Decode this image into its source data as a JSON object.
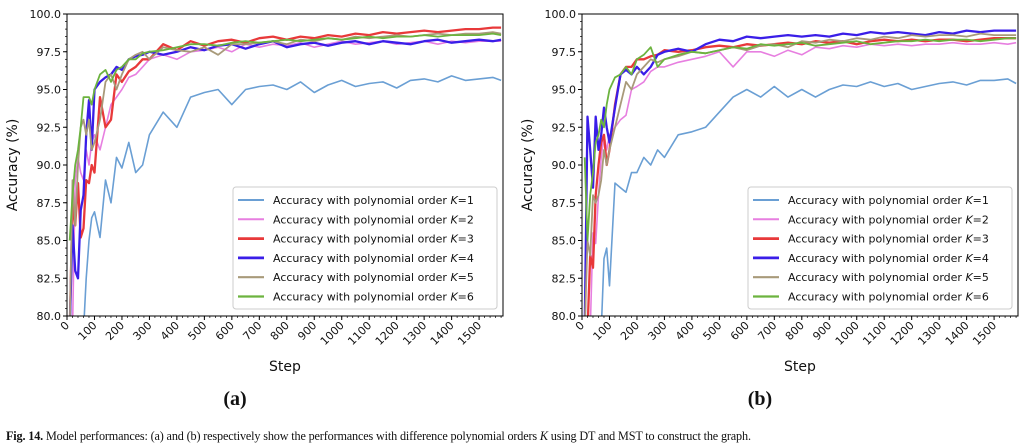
{
  "caption": {
    "label": "Fig. 14.",
    "text_before": "Model performances: (a) and (b) respectively show the performances with difference polynomial orders ",
    "italic": "K",
    "text_after": " using DT and MST to construct the graph."
  },
  "chart_data": [
    {
      "type": "line",
      "panel_label": "(a)",
      "xlabel": "Step",
      "ylabel": "Accuracy (%)",
      "xlim": [
        0,
        1587
      ],
      "ylim": [
        80.0,
        100.0
      ],
      "xticks": [
        0,
        100,
        200,
        300,
        400,
        500,
        600,
        700,
        800,
        900,
        1000,
        1100,
        1200,
        1300,
        1400,
        1500
      ],
      "yticks": [
        "80.0",
        "82.5",
        "85.0",
        "87.5",
        "90.0",
        "92.5",
        "95.0",
        "97.5",
        "100.0"
      ],
      "grid": false,
      "legend_position": "lower-right",
      "x": [
        10,
        20,
        30,
        40,
        50,
        60,
        70,
        80,
        90,
        100,
        120,
        140,
        160,
        180,
        200,
        225,
        250,
        275,
        300,
        350,
        400,
        450,
        500,
        550,
        600,
        650,
        700,
        750,
        800,
        850,
        900,
        950,
        1000,
        1050,
        1100,
        1150,
        1200,
        1250,
        1300,
        1350,
        1400,
        1450,
        1500,
        1550,
        1580
      ],
      "series": [
        {
          "name": "Accuracy with polynomial order K=1",
          "color": "#6a9fd4",
          "values": [
            79,
            79,
            79,
            79,
            79,
            79,
            82.5,
            85,
            86.5,
            86.9,
            85.2,
            89,
            87.5,
            90.5,
            89.8,
            91.5,
            89.5,
            90,
            92,
            93.5,
            92.5,
            94.5,
            94.8,
            95,
            94,
            95,
            95.2,
            95.3,
            95,
            95.5,
            94.8,
            95.3,
            95.6,
            95.2,
            95.4,
            95.5,
            95.1,
            95.6,
            95.7,
            95.5,
            95.9,
            95.6,
            95.7,
            95.8,
            95.6
          ]
        },
        {
          "name": "Accuracy with polynomial order K=2",
          "color": "#e77fe0",
          "values": [
            79,
            79,
            89,
            90.5,
            89.5,
            89,
            91,
            90,
            91.5,
            92,
            91,
            92.5,
            94,
            94.5,
            95,
            95.8,
            96,
            96.5,
            97,
            97.3,
            97,
            97.5,
            97.6,
            97.8,
            97.5,
            98,
            97.8,
            98,
            97.9,
            98.1,
            97.8,
            98,
            98.2,
            98,
            98.1,
            98.2,
            98,
            98.1,
            98.2,
            98,
            98.2,
            98.1,
            98.2,
            98.2,
            98.2
          ]
        },
        {
          "name": "Accuracy with polynomial order K=3",
          "color": "#e8393a",
          "values": [
            79,
            87.5,
            86,
            88.8,
            85.2,
            85.8,
            89,
            88.8,
            90,
            89.5,
            94.5,
            92.5,
            93,
            96,
            95.5,
            96.2,
            96.5,
            97,
            97,
            98,
            97.6,
            98.2,
            97.9,
            98.2,
            98.3,
            98.1,
            98.4,
            98.5,
            98.3,
            98.5,
            98.4,
            98.6,
            98.5,
            98.7,
            98.6,
            98.8,
            98.7,
            98.8,
            98.9,
            98.8,
            98.9,
            99,
            99,
            99.1,
            99.1
          ]
        },
        {
          "name": "Accuracy with polynomial order K=4",
          "color": "#3a1ee8",
          "values": [
            79,
            86,
            83,
            82.5,
            87,
            88,
            92,
            94.3,
            91,
            95,
            95.5,
            95.8,
            96,
            96.5,
            96.3,
            97,
            97.2,
            97.3,
            97.5,
            97.3,
            97.5,
            97.8,
            97.6,
            97.9,
            98,
            97.7,
            98,
            98.2,
            97.8,
            98,
            98.1,
            97.9,
            98.1,
            98.2,
            98,
            98.2,
            98.1,
            98,
            98.2,
            98.3,
            98.1,
            98.2,
            98.3,
            98.2,
            98.3
          ]
        },
        {
          "name": "Accuracy with polynomial order K=5",
          "color": "#a89a7a",
          "values": [
            79,
            89,
            86,
            90,
            92.5,
            93,
            92,
            93,
            91,
            91.5,
            93,
            95.5,
            96,
            95,
            96,
            97,
            97.3,
            97.5,
            97,
            97.8,
            97.6,
            97.5,
            97.8,
            97.3,
            98,
            98,
            98.1,
            98.2,
            98,
            98.3,
            98.2,
            98.4,
            98.3,
            98.5,
            98.4,
            98.5,
            98.6,
            98.5,
            98.6,
            98.7,
            98.6,
            98.7,
            98.7,
            98.8,
            98.7
          ]
        },
        {
          "name": "Accuracy with polynomial order K=6",
          "color": "#6cb33f",
          "values": [
            85,
            88,
            90,
            91,
            92.5,
            94.5,
            94.5,
            94.5,
            94,
            95,
            96,
            96.3,
            95.5,
            96.3,
            96.5,
            97,
            97,
            97.4,
            97.5,
            97.6,
            97.8,
            98,
            98,
            97.9,
            98.1,
            98.2,
            98.1,
            98.2,
            98.3,
            98.2,
            98.3,
            98.4,
            98.3,
            98.4,
            98.5,
            98.4,
            98.5,
            98.5,
            98.6,
            98.5,
            98.6,
            98.6,
            98.6,
            98.7,
            98.6
          ]
        }
      ]
    },
    {
      "type": "line",
      "panel_label": "(b)",
      "xlabel": "Step",
      "ylabel": "Accuracy (%)",
      "xlim": [
        0,
        1587
      ],
      "ylim": [
        80.0,
        100.0
      ],
      "xticks": [
        0,
        100,
        200,
        300,
        400,
        500,
        600,
        700,
        800,
        900,
        1000,
        1100,
        1200,
        1300,
        1400,
        1500
      ],
      "yticks": [
        "80.0",
        "82.5",
        "85.0",
        "87.5",
        "90.0",
        "92.5",
        "95.0",
        "97.5",
        "100.0"
      ],
      "grid": false,
      "legend_position": "lower-right",
      "x": [
        10,
        20,
        30,
        40,
        50,
        60,
        70,
        80,
        90,
        100,
        120,
        140,
        160,
        180,
        200,
        225,
        250,
        275,
        300,
        350,
        400,
        450,
        500,
        550,
        600,
        650,
        700,
        750,
        800,
        850,
        900,
        950,
        1000,
        1050,
        1100,
        1150,
        1200,
        1250,
        1300,
        1350,
        1400,
        1450,
        1500,
        1550,
        1580
      ],
      "series": [
        {
          "name": "Accuracy with polynomial order K=1",
          "color": "#6a9fd4",
          "values": [
            79,
            79,
            79,
            79,
            79,
            79,
            79,
            83.8,
            84.5,
            82,
            88.8,
            88.5,
            88.2,
            89.5,
            89.5,
            90.5,
            90,
            91,
            90.5,
            92,
            92.2,
            92.5,
            93.5,
            94.5,
            95,
            94.5,
            95.2,
            94.5,
            95,
            94.5,
            95,
            95.3,
            95.2,
            95.5,
            95.2,
            95.4,
            95,
            95.2,
            95.4,
            95.5,
            95.3,
            95.6,
            95.6,
            95.7,
            95.4
          ]
        },
        {
          "name": "Accuracy with polynomial order K=2",
          "color": "#e77fe0",
          "values": [
            79,
            79,
            79,
            85.5,
            84.8,
            88,
            90.5,
            92,
            91,
            92,
            92.5,
            93,
            93.3,
            95,
            95.2,
            95.5,
            96.2,
            96.5,
            96.5,
            96.8,
            97,
            97.2,
            97.5,
            96.5,
            97.5,
            97.5,
            97.2,
            97.6,
            97.3,
            97.8,
            97.7,
            97.9,
            97.8,
            98,
            97.9,
            98,
            97.9,
            98,
            98,
            98.1,
            98,
            98,
            98.1,
            98,
            98.1
          ]
        },
        {
          "name": "Accuracy with polynomial order K=3",
          "color": "#e8393a",
          "values": [
            79,
            79,
            84,
            83.2,
            88,
            90,
            91.5,
            92,
            90,
            91,
            94,
            96,
            96.5,
            96.5,
            97,
            97,
            97.2,
            97.3,
            97.6,
            97.5,
            97.6,
            97.8,
            97.9,
            97.8,
            98,
            97.9,
            98,
            98.1,
            98,
            98.2,
            98.1,
            98.2,
            98,
            98.2,
            98.3,
            98.2,
            98.3,
            98.2,
            98.3,
            98.3,
            98.2,
            98.3,
            98.4,
            98.4,
            98.4
          ]
        },
        {
          "name": "Accuracy with polynomial order K=4",
          "color": "#3a1ee8",
          "values": [
            79,
            93.2,
            91,
            88.5,
            93.2,
            91,
            92,
            93.8,
            92.5,
            91.5,
            93.8,
            96,
            96.3,
            96,
            96.5,
            96,
            96.5,
            97.3,
            97.5,
            97.7,
            97.5,
            98,
            98.3,
            98.2,
            98.5,
            98.4,
            98.5,
            98.6,
            98.5,
            98.6,
            98.5,
            98.7,
            98.6,
            98.8,
            98.7,
            98.8,
            98.7,
            98.6,
            98.8,
            98.7,
            98.9,
            98.8,
            98.9,
            98.9,
            98.9
          ]
        },
        {
          "name": "Accuracy with polynomial order K=5",
          "color": "#a89a7a",
          "values": [
            79,
            85,
            84,
            88,
            87.5,
            88,
            89,
            91,
            90,
            91,
            92.5,
            94,
            95.5,
            95,
            96,
            96.5,
            97,
            96.8,
            97,
            97.2,
            97.5,
            97.4,
            97.6,
            97.8,
            97.6,
            97.9,
            98,
            97.8,
            98.2,
            98.1,
            98.3,
            98.2,
            98.4,
            98.3,
            98.5,
            98.4,
            98.6,
            98.5,
            98.6,
            98.6,
            98.5,
            98.7,
            98.6,
            98.6,
            98.6
          ]
        },
        {
          "name": "Accuracy with polynomial order K=6",
          "color": "#6cb33f",
          "values": [
            90.5,
            85,
            88,
            89.5,
            91.5,
            92,
            93,
            92.5,
            94,
            95,
            95.8,
            96,
            96.5,
            96,
            97,
            97.3,
            97.8,
            96.5,
            97,
            97.3,
            97.5,
            97.4,
            97.6,
            97.8,
            97.7,
            98,
            97.9,
            98,
            98.1,
            97.9,
            98,
            98.1,
            98.2,
            98,
            98.1,
            98.2,
            98.2,
            98.3,
            98.2,
            98.3,
            98.3,
            98.2,
            98.3,
            98.4,
            98.4
          ]
        }
      ]
    }
  ]
}
